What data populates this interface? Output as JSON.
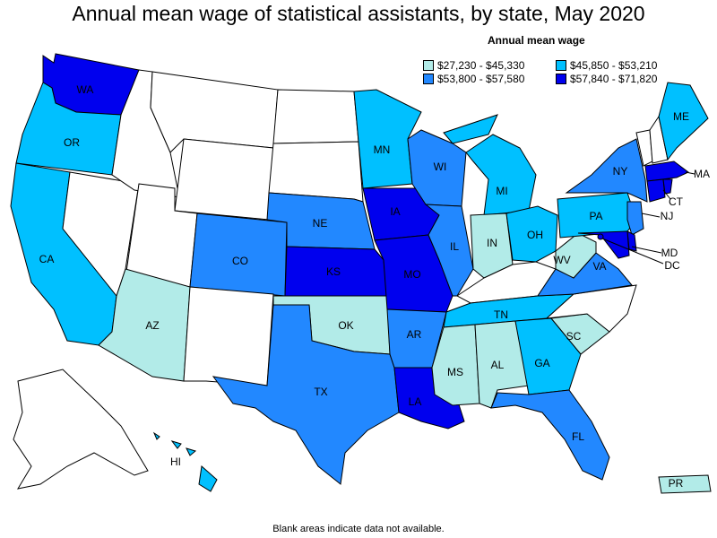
{
  "title": "Annual mean wage of statistical assistants, by state, May 2020",
  "legend": {
    "title": "Annual mean wage",
    "items": [
      {
        "label": "$27,230 - $45,330",
        "color": "#b2ebe8"
      },
      {
        "label": "$45,850 - $53,210",
        "color": "#00c0ff"
      },
      {
        "label": "$53,800 - $57,580",
        "color": "#2288ff"
      },
      {
        "label": "$57,840 - $71,820",
        "color": "#0000ee"
      }
    ]
  },
  "colors": {
    "no_data": "#ffffff",
    "tier1": "#b2ebe8",
    "tier2": "#00c0ff",
    "tier3": "#2288ff",
    "tier4": "#0000ee"
  },
  "labels": {
    "WA": "WA",
    "OR": "OR",
    "CA": "CA",
    "AZ": "AZ",
    "CO": "CO",
    "NE": "NE",
    "KS": "KS",
    "OK": "OK",
    "TX": "TX",
    "MN": "MN",
    "IA": "IA",
    "MO": "MO",
    "AR": "AR",
    "LA": "LA",
    "WI": "WI",
    "IL": "IL",
    "MI": "MI",
    "IN": "IN",
    "OH": "OH",
    "KY": "",
    "TN": "TN",
    "MS": "MS",
    "AL": "AL",
    "GA": "GA",
    "FL": "FL",
    "SC": "SC",
    "NC": "",
    "VA": "VA",
    "WV": "WV",
    "PA": "PA",
    "NY": "NY",
    "ME": "ME",
    "MA": "MA",
    "CT": "CT",
    "NJ": "NJ",
    "MD": "MD",
    "DC": "DC",
    "HI": "HI",
    "PR": "PR"
  },
  "state_tiers": {
    "WA": 4,
    "OR": 2,
    "CA": 2,
    "AZ": 1,
    "CO": 3,
    "NE": 3,
    "KS": 4,
    "OK": 1,
    "TX": 3,
    "MN": 2,
    "IA": 4,
    "MO": 4,
    "AR": 3,
    "LA": 4,
    "WI": 3,
    "IL": 3,
    "MI": 2,
    "IN": 1,
    "OH": 2,
    "TN": 2,
    "MS": 1,
    "AL": 1,
    "GA": 2,
    "FL": 3,
    "SC": 1,
    "VA": 3,
    "WV": 1,
    "PA": 2,
    "NY": 3,
    "ME": 2,
    "MA": 4,
    "CT": 4,
    "NJ": 3,
    "MD": 4,
    "DC": 4,
    "RI": 4,
    "DE": 4,
    "HI": 2,
    "PR": 1
  },
  "footnote": "Blank areas indicate data not available."
}
